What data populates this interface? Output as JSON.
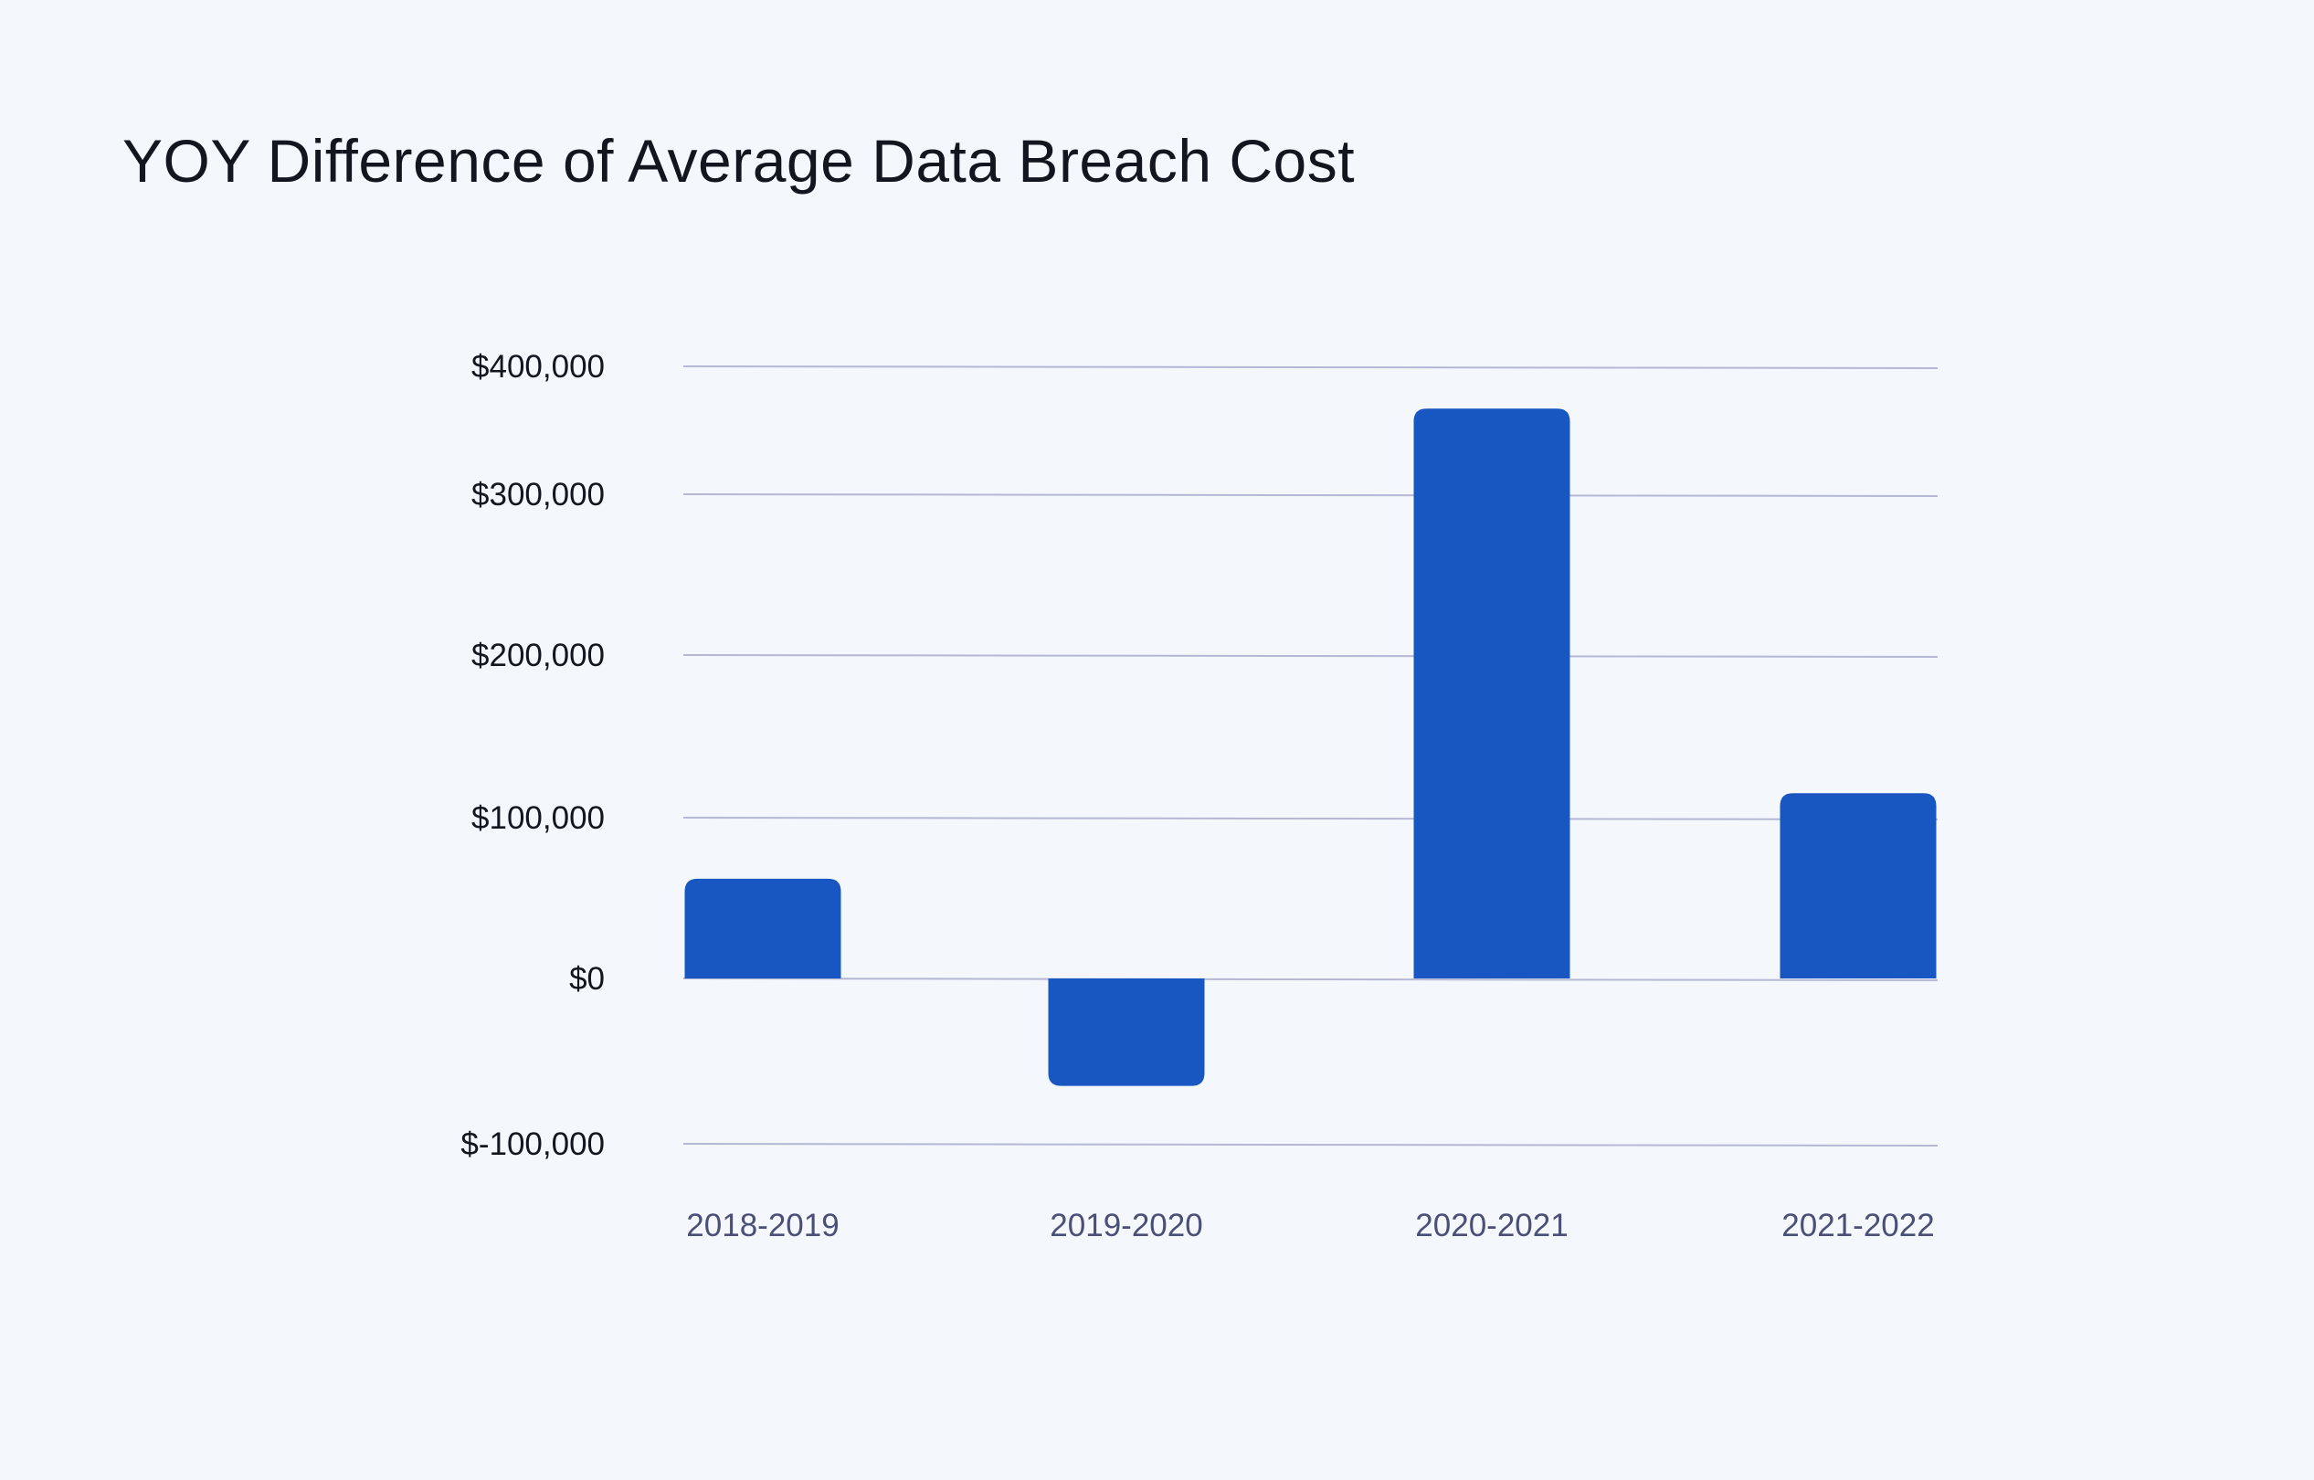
{
  "chart_data": {
    "type": "bar",
    "title": "YOY Difference of Average Data Breach Cost",
    "xlabel": "",
    "ylabel": "",
    "categories": [
      "2018-2019",
      "2019-2020",
      "2020-2021",
      "2021-2022"
    ],
    "values": [
      62000,
      -65000,
      367000,
      115000
    ],
    "yticks": [
      400000,
      300000,
      200000,
      100000,
      0,
      -100000
    ],
    "ytick_labels": [
      "$400,000",
      "$300,000",
      "$200,000",
      "$100,000",
      "$0",
      "$-100,000"
    ],
    "ylim": [
      -100000,
      400000
    ],
    "grid": true,
    "legend": "none",
    "colors": {
      "bar": "#1856c1",
      "grid": "#b4b8d4",
      "tick_text": "#14161f",
      "category_text": "#4a4f78",
      "background": "#f4f7fc"
    }
  }
}
